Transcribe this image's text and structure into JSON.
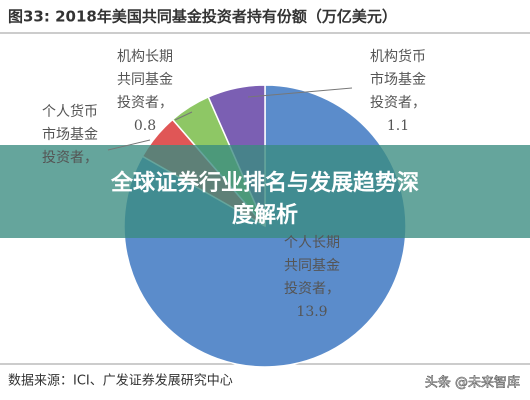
{
  "chart_data": {
    "type": "pie",
    "title": "图33: 2018年美国共同基金投资者持有份额（万亿美元）",
    "series": [
      {
        "label_lines": [
          "个人长期",
          "共同基金",
          "投资者，"
        ],
        "color": "#5b8ccb",
        "value": 13.9
      },
      {
        "label_lines": [
          "个人货币",
          "市场基金",
          "投资者，"
        ],
        "color": "#e05656",
        "value": 0.9
      },
      {
        "label_lines": [
          "机构长期",
          "共同基金",
          "投资者，"
        ],
        "color": "#8ec765",
        "value": 0.8
      },
      {
        "label_lines": [
          "机构货币",
          "市场基金",
          "投资者，"
        ],
        "color": "#7b5fb3",
        "value": 1.1
      }
    ],
    "source": "数据来源：ICI、广发证券发展研究中心"
  },
  "overlay": {
    "banner_lines": [
      "全球证券行业排名与发展趋势深",
      "度解析"
    ],
    "watermark": "头条 @未来智库"
  }
}
